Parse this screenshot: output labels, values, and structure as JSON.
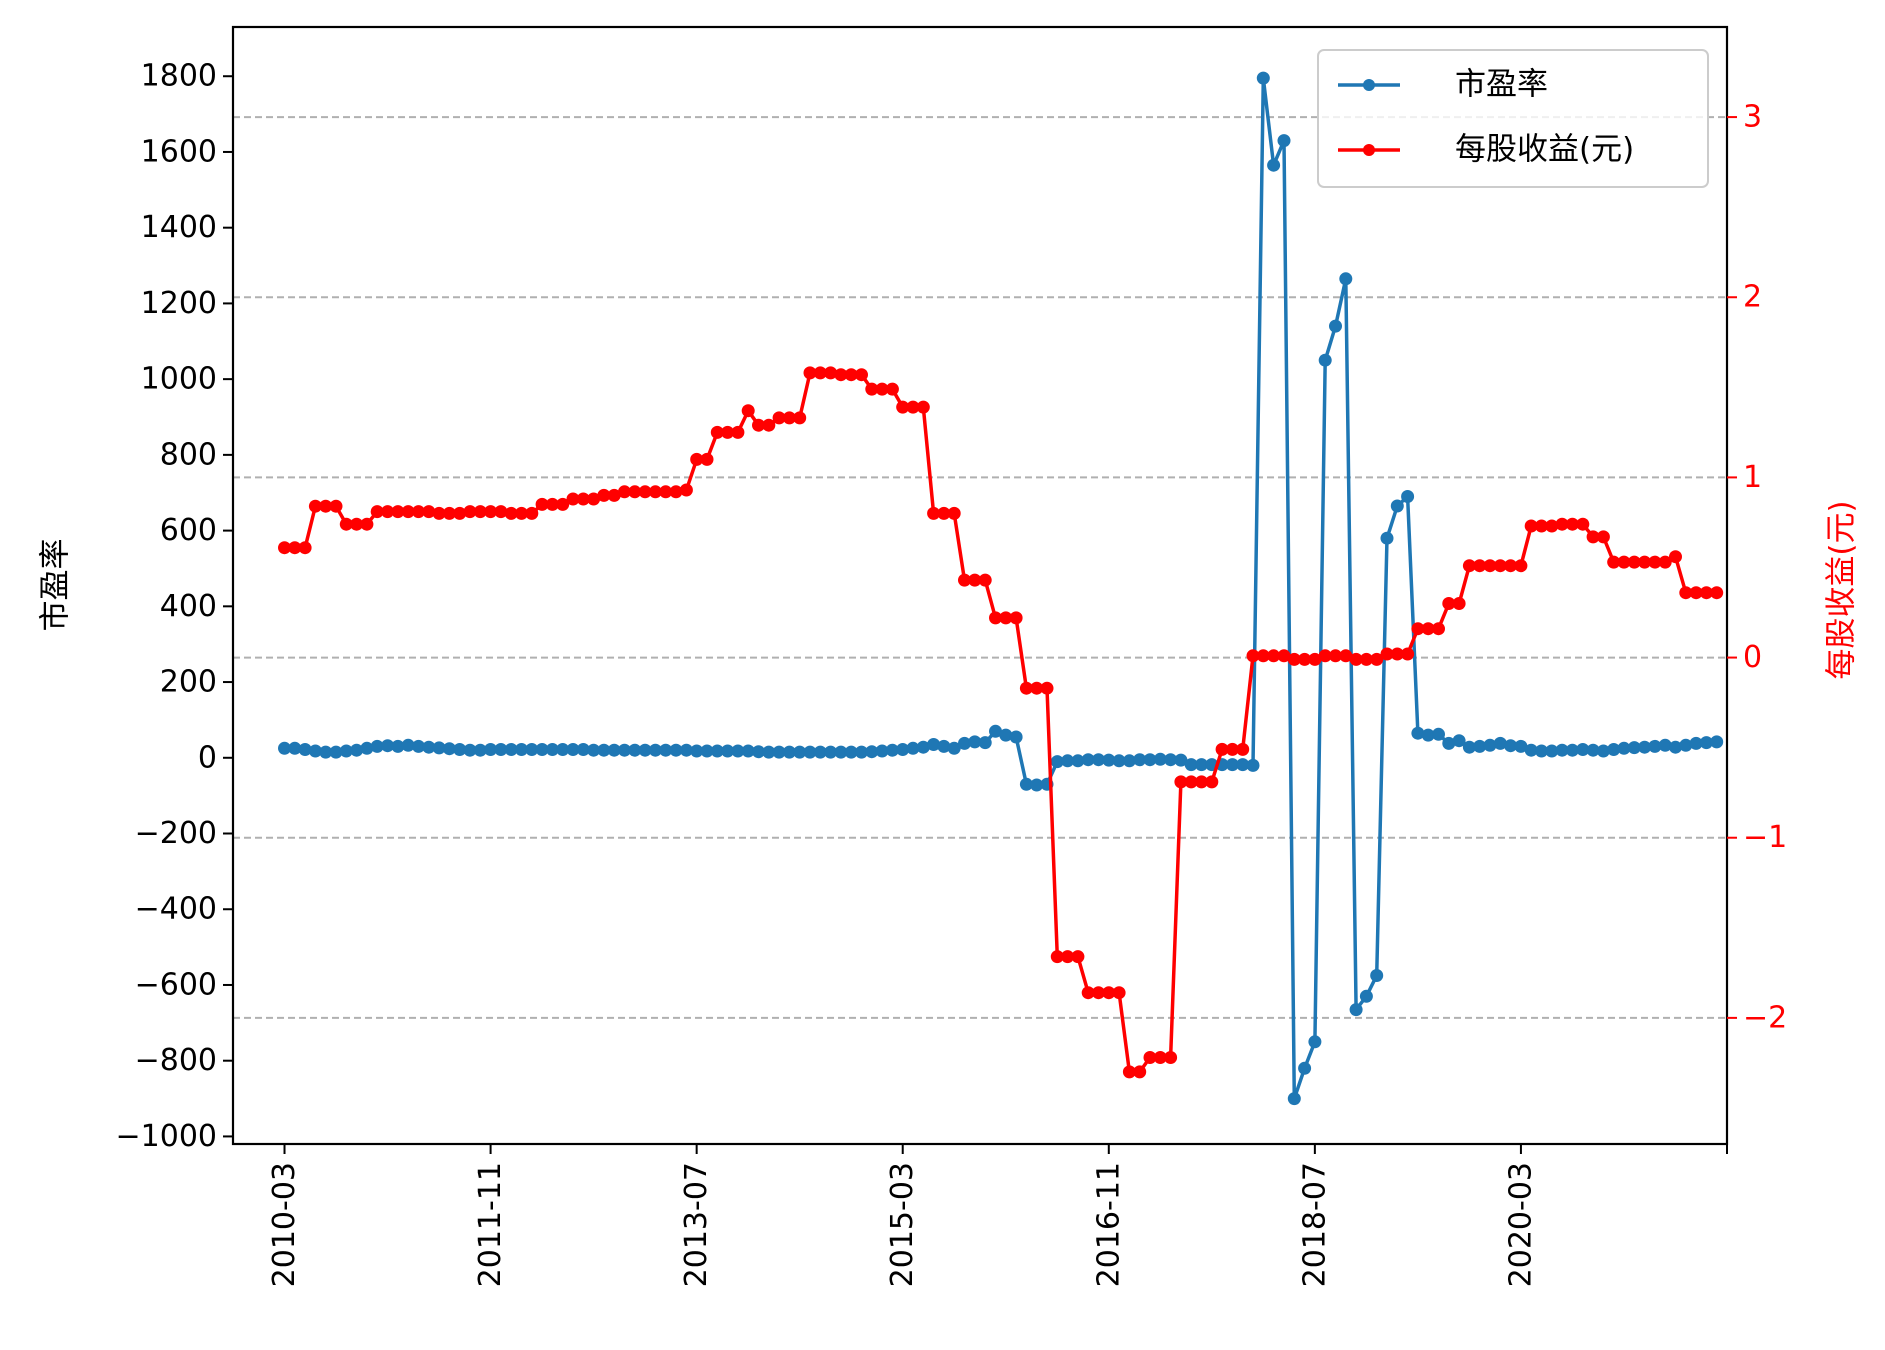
{
  "chart_data": {
    "type": "line",
    "dual_axis": true,
    "x_type": "month",
    "x_ticks": [
      "2010-03",
      "2011-11",
      "2013-07",
      "2015-03",
      "2016-11",
      "2018-07",
      "2020-03"
    ],
    "y_left": {
      "label": "市盈率",
      "lim": [
        -1020,
        1930
      ],
      "ticks": [
        -1000,
        -800,
        -600,
        -400,
        -200,
        0,
        200,
        400,
        600,
        800,
        1000,
        1200,
        1400,
        1600,
        1800
      ],
      "tick_labels": [
        "−1000",
        "−800",
        "−600",
        "−400",
        "−200",
        "0",
        "200",
        "400",
        "600",
        "800",
        "1000",
        "1200",
        "1400",
        "1600",
        "1800"
      ],
      "color": "#000000"
    },
    "y_right": {
      "label": "每股收益(元)",
      "lim": [
        -2.7,
        3.5
      ],
      "ticks": [
        -2,
        -1,
        0,
        1,
        2,
        3
      ],
      "tick_labels": [
        "−2",
        "−1",
        "0",
        "1",
        "2",
        "3"
      ],
      "color": "#ff0000"
    },
    "x_range": [
      "2009-10",
      "2021-11"
    ],
    "grid": {
      "axis": "y_right",
      "style": "dashed",
      "color": "#b0b0b0"
    },
    "legend_position": "top-right",
    "series": [
      {
        "name": "市盈率",
        "axis": "left",
        "color": "#1f77b4",
        "points": [
          [
            "2010-03",
            25
          ],
          [
            "2010-04",
            25
          ],
          [
            "2010-05",
            22
          ],
          [
            "2010-06",
            18
          ],
          [
            "2010-07",
            15
          ],
          [
            "2010-08",
            15
          ],
          [
            "2010-09",
            18
          ],
          [
            "2010-10",
            20
          ],
          [
            "2010-11",
            25
          ],
          [
            "2010-12",
            30
          ],
          [
            "2011-01",
            32
          ],
          [
            "2011-02",
            30
          ],
          [
            "2011-03",
            33
          ],
          [
            "2011-04",
            30
          ],
          [
            "2011-05",
            28
          ],
          [
            "2011-06",
            26
          ],
          [
            "2011-07",
            24
          ],
          [
            "2011-08",
            22
          ],
          [
            "2011-09",
            20
          ],
          [
            "2011-10",
            20
          ],
          [
            "2011-11",
            22
          ],
          [
            "2011-12",
            22
          ],
          [
            "2012-01",
            22
          ],
          [
            "2012-02",
            22
          ],
          [
            "2012-03",
            22
          ],
          [
            "2012-04",
            22
          ],
          [
            "2012-05",
            22
          ],
          [
            "2012-06",
            22
          ],
          [
            "2012-07",
            22
          ],
          [
            "2012-08",
            22
          ],
          [
            "2012-09",
            20
          ],
          [
            "2012-10",
            20
          ],
          [
            "2012-11",
            20
          ],
          [
            "2012-12",
            20
          ],
          [
            "2013-01",
            20
          ],
          [
            "2013-02",
            20
          ],
          [
            "2013-03",
            20
          ],
          [
            "2013-04",
            20
          ],
          [
            "2013-05",
            20
          ],
          [
            "2013-06",
            20
          ],
          [
            "2013-07",
            18
          ],
          [
            "2013-08",
            18
          ],
          [
            "2013-09",
            18
          ],
          [
            "2013-10",
            18
          ],
          [
            "2013-11",
            18
          ],
          [
            "2013-12",
            18
          ],
          [
            "2014-01",
            16
          ],
          [
            "2014-02",
            15
          ],
          [
            "2014-03",
            15
          ],
          [
            "2014-04",
            15
          ],
          [
            "2014-05",
            15
          ],
          [
            "2014-06",
            15
          ],
          [
            "2014-07",
            15
          ],
          [
            "2014-08",
            15
          ],
          [
            "2014-09",
            15
          ],
          [
            "2014-10",
            15
          ],
          [
            "2014-11",
            15
          ],
          [
            "2014-12",
            16
          ],
          [
            "2015-01",
            18
          ],
          [
            "2015-02",
            20
          ],
          [
            "2015-03",
            22
          ],
          [
            "2015-04",
            25
          ],
          [
            "2015-05",
            28
          ],
          [
            "2015-06",
            35
          ],
          [
            "2015-07",
            30
          ],
          [
            "2015-08",
            25
          ],
          [
            "2015-09",
            38
          ],
          [
            "2015-10",
            42
          ],
          [
            "2015-11",
            40
          ],
          [
            "2015-12",
            70
          ],
          [
            "2016-01",
            60
          ],
          [
            "2016-02",
            55
          ],
          [
            "2016-03",
            -70
          ],
          [
            "2016-04",
            -72
          ],
          [
            "2016-05",
            -70
          ],
          [
            "2016-06",
            -10
          ],
          [
            "2016-07",
            -8
          ],
          [
            "2016-08",
            -8
          ],
          [
            "2016-09",
            -5
          ],
          [
            "2016-10",
            -5
          ],
          [
            "2016-11",
            -6
          ],
          [
            "2016-12",
            -8
          ],
          [
            "2017-01",
            -8
          ],
          [
            "2017-02",
            -5
          ],
          [
            "2017-03",
            -5
          ],
          [
            "2017-04",
            -4
          ],
          [
            "2017-05",
            -5
          ],
          [
            "2017-06",
            -6
          ],
          [
            "2017-07",
            -18
          ],
          [
            "2017-08",
            -18
          ],
          [
            "2017-09",
            -18
          ],
          [
            "2017-10",
            -18
          ],
          [
            "2017-11",
            -18
          ],
          [
            "2017-12",
            -18
          ],
          [
            "2018-01",
            -20
          ],
          [
            "2018-02",
            1795
          ],
          [
            "2018-03",
            1565
          ],
          [
            "2018-04",
            1630
          ],
          [
            "2018-05",
            -900
          ],
          [
            "2018-06",
            -820
          ],
          [
            "2018-07",
            -750
          ],
          [
            "2018-08",
            1050
          ],
          [
            "2018-09",
            1140
          ],
          [
            "2018-10",
            1265
          ],
          [
            "2018-11",
            -665
          ],
          [
            "2018-12",
            -630
          ],
          [
            "2019-01",
            -575
          ],
          [
            "2019-02",
            580
          ],
          [
            "2019-03",
            665
          ],
          [
            "2019-04",
            690
          ],
          [
            "2019-05",
            65
          ],
          [
            "2019-06",
            60
          ],
          [
            "2019-07",
            62
          ],
          [
            "2019-08",
            38
          ],
          [
            "2019-09",
            45
          ],
          [
            "2019-10",
            28
          ],
          [
            "2019-11",
            30
          ],
          [
            "2019-12",
            33
          ],
          [
            "2020-01",
            38
          ],
          [
            "2020-02",
            32
          ],
          [
            "2020-03",
            30
          ],
          [
            "2020-04",
            20
          ],
          [
            "2020-05",
            18
          ],
          [
            "2020-06",
            18
          ],
          [
            "2020-07",
            20
          ],
          [
            "2020-08",
            20
          ],
          [
            "2020-09",
            22
          ],
          [
            "2020-10",
            20
          ],
          [
            "2020-11",
            18
          ],
          [
            "2020-12",
            22
          ],
          [
            "2021-01",
            25
          ],
          [
            "2021-02",
            27
          ],
          [
            "2021-03",
            28
          ],
          [
            "2021-04",
            30
          ],
          [
            "2021-05",
            33
          ],
          [
            "2021-06",
            28
          ],
          [
            "2021-07",
            33
          ],
          [
            "2021-08",
            38
          ],
          [
            "2021-09",
            40
          ],
          [
            "2021-10",
            42
          ]
        ]
      },
      {
        "name": "每股收益(元)",
        "axis": "right",
        "color": "#ff0000",
        "points": [
          [
            "2010-03",
            0.61
          ],
          [
            "2010-04",
            0.61
          ],
          [
            "2010-05",
            0.61
          ],
          [
            "2010-06",
            0.84
          ],
          [
            "2010-07",
            0.84
          ],
          [
            "2010-08",
            0.84
          ],
          [
            "2010-09",
            0.74
          ],
          [
            "2010-10",
            0.74
          ],
          [
            "2010-11",
            0.74
          ],
          [
            "2010-12",
            0.81
          ],
          [
            "2011-01",
            0.81
          ],
          [
            "2011-02",
            0.81
          ],
          [
            "2011-03",
            0.81
          ],
          [
            "2011-04",
            0.81
          ],
          [
            "2011-05",
            0.81
          ],
          [
            "2011-06",
            0.8
          ],
          [
            "2011-07",
            0.8
          ],
          [
            "2011-08",
            0.8
          ],
          [
            "2011-09",
            0.81
          ],
          [
            "2011-10",
            0.81
          ],
          [
            "2011-11",
            0.81
          ],
          [
            "2011-12",
            0.81
          ],
          [
            "2012-01",
            0.8
          ],
          [
            "2012-02",
            0.8
          ],
          [
            "2012-03",
            0.8
          ],
          [
            "2012-04",
            0.85
          ],
          [
            "2012-05",
            0.85
          ],
          [
            "2012-06",
            0.85
          ],
          [
            "2012-07",
            0.88
          ],
          [
            "2012-08",
            0.88
          ],
          [
            "2012-09",
            0.88
          ],
          [
            "2012-10",
            0.9
          ],
          [
            "2012-11",
            0.9
          ],
          [
            "2012-12",
            0.92
          ],
          [
            "2013-01",
            0.92
          ],
          [
            "2013-02",
            0.92
          ],
          [
            "2013-03",
            0.92
          ],
          [
            "2013-04",
            0.92
          ],
          [
            "2013-05",
            0.92
          ],
          [
            "2013-06",
            0.93
          ],
          [
            "2013-07",
            1.1
          ],
          [
            "2013-08",
            1.1
          ],
          [
            "2013-09",
            1.25
          ],
          [
            "2013-10",
            1.25
          ],
          [
            "2013-11",
            1.25
          ],
          [
            "2013-12",
            1.37
          ],
          [
            "2014-01",
            1.29
          ],
          [
            "2014-02",
            1.29
          ],
          [
            "2014-03",
            1.33
          ],
          [
            "2014-04",
            1.33
          ],
          [
            "2014-05",
            1.33
          ],
          [
            "2014-06",
            1.58
          ],
          [
            "2014-07",
            1.58
          ],
          [
            "2014-08",
            1.58
          ],
          [
            "2014-09",
            1.57
          ],
          [
            "2014-10",
            1.57
          ],
          [
            "2014-11",
            1.57
          ],
          [
            "2014-12",
            1.49
          ],
          [
            "2015-01",
            1.49
          ],
          [
            "2015-02",
            1.49
          ],
          [
            "2015-03",
            1.39
          ],
          [
            "2015-04",
            1.39
          ],
          [
            "2015-05",
            1.39
          ],
          [
            "2015-06",
            0.8
          ],
          [
            "2015-07",
            0.8
          ],
          [
            "2015-08",
            0.8
          ],
          [
            "2015-09",
            0.43
          ],
          [
            "2015-10",
            0.43
          ],
          [
            "2015-11",
            0.43
          ],
          [
            "2015-12",
            0.22
          ],
          [
            "2016-01",
            0.22
          ],
          [
            "2016-02",
            0.22
          ],
          [
            "2016-03",
            -0.17
          ],
          [
            "2016-04",
            -0.17
          ],
          [
            "2016-05",
            -0.17
          ],
          [
            "2016-06",
            -1.66
          ],
          [
            "2016-07",
            -1.66
          ],
          [
            "2016-08",
            -1.66
          ],
          [
            "2016-09",
            -1.86
          ],
          [
            "2016-10",
            -1.86
          ],
          [
            "2016-11",
            -1.86
          ],
          [
            "2016-12",
            -1.86
          ],
          [
            "2017-01",
            -2.3
          ],
          [
            "2017-02",
            -2.3
          ],
          [
            "2017-03",
            -2.22
          ],
          [
            "2017-04",
            -2.22
          ],
          [
            "2017-05",
            -2.22
          ],
          [
            "2017-06",
            -0.69
          ],
          [
            "2017-07",
            -0.69
          ],
          [
            "2017-08",
            -0.69
          ],
          [
            "2017-09",
            -0.69
          ],
          [
            "2017-10",
            -0.51
          ],
          [
            "2017-11",
            -0.51
          ],
          [
            "2017-12",
            -0.51
          ],
          [
            "2018-01",
            0.01
          ],
          [
            "2018-02",
            0.01
          ],
          [
            "2018-03",
            0.01
          ],
          [
            "2018-04",
            0.01
          ],
          [
            "2018-05",
            -0.01
          ],
          [
            "2018-06",
            -0.01
          ],
          [
            "2018-07",
            -0.01
          ],
          [
            "2018-08",
            0.01
          ],
          [
            "2018-09",
            0.01
          ],
          [
            "2018-10",
            0.01
          ],
          [
            "2018-11",
            -0.01
          ],
          [
            "2018-12",
            -0.01
          ],
          [
            "2019-01",
            -0.01
          ],
          [
            "2019-02",
            0.02
          ],
          [
            "2019-03",
            0.02
          ],
          [
            "2019-04",
            0.02
          ],
          [
            "2019-05",
            0.16
          ],
          [
            "2019-06",
            0.16
          ],
          [
            "2019-07",
            0.16
          ],
          [
            "2019-08",
            0.3
          ],
          [
            "2019-09",
            0.3
          ],
          [
            "2019-10",
            0.51
          ],
          [
            "2019-11",
            0.51
          ],
          [
            "2019-12",
            0.51
          ],
          [
            "2020-01",
            0.51
          ],
          [
            "2020-02",
            0.51
          ],
          [
            "2020-03",
            0.51
          ],
          [
            "2020-04",
            0.73
          ],
          [
            "2020-05",
            0.73
          ],
          [
            "2020-06",
            0.73
          ],
          [
            "2020-07",
            0.74
          ],
          [
            "2020-08",
            0.74
          ],
          [
            "2020-09",
            0.74
          ],
          [
            "2020-10",
            0.67
          ],
          [
            "2020-11",
            0.67
          ],
          [
            "2020-12",
            0.53
          ],
          [
            "2021-01",
            0.53
          ],
          [
            "2021-02",
            0.53
          ],
          [
            "2021-03",
            0.53
          ],
          [
            "2021-04",
            0.53
          ],
          [
            "2021-05",
            0.53
          ],
          [
            "2021-06",
            0.56
          ],
          [
            "2021-07",
            0.36
          ],
          [
            "2021-08",
            0.36
          ],
          [
            "2021-09",
            0.36
          ],
          [
            "2021-10",
            0.36
          ]
        ]
      }
    ]
  }
}
